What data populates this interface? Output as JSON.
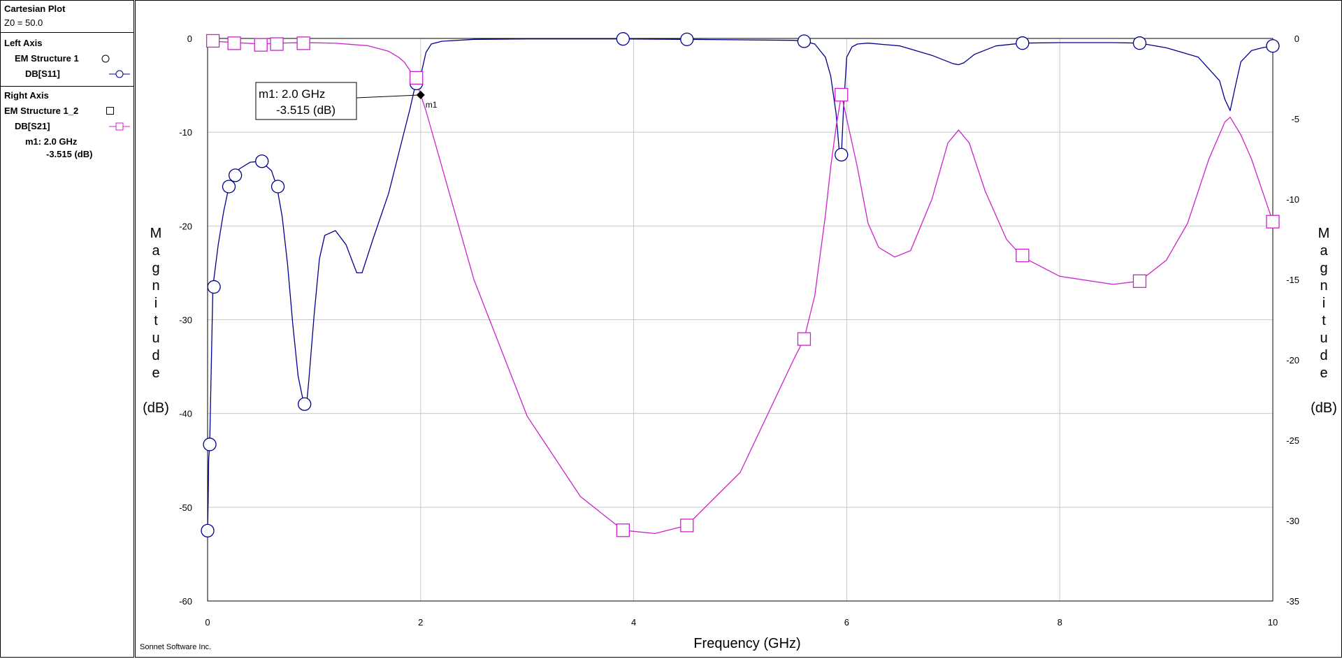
{
  "legend": {
    "title": "Cartesian Plot",
    "z0": "Z0 = 50.0",
    "left_axis_title": "Left Axis",
    "left_structure": "EM Structure 1",
    "left_trace": "DB[S11]",
    "right_axis_title": "Right Axis",
    "right_structure": "EM Structure 1_2",
    "right_trace": "DB[S21]",
    "marker_line1": "m1: 2.0 GHz",
    "marker_line2": "-3.515  (dB)"
  },
  "footer": "Sonnet Software Inc.",
  "colors": {
    "s11": "#00008b",
    "s21": "#cc22cc",
    "grid": "#c8c8c8",
    "marker": "#000000"
  },
  "chart_data": {
    "type": "line",
    "xlabel": "Frequency (GHz)",
    "ylabel_left": [
      "M",
      "a",
      "g",
      "n",
      "i",
      "t",
      "u",
      "d",
      "e",
      "(dB)"
    ],
    "ylabel_right": [
      "M",
      "a",
      "g",
      "n",
      "i",
      "t",
      "u",
      "d",
      "e",
      "(dB)"
    ],
    "xlim": [
      0,
      10
    ],
    "ylim_left": [
      -60,
      0
    ],
    "ylim_right": [
      -35,
      0
    ],
    "x_ticks": [
      "0",
      "2",
      "4",
      "6",
      "8",
      "10"
    ],
    "y_ticks_left": [
      "0",
      "-10",
      "-20",
      "-30",
      "-40",
      "-50",
      "-60"
    ],
    "y_ticks_right": [
      "0",
      "-5",
      "-10",
      "-15",
      "-20",
      "-25",
      "-30",
      "-35"
    ],
    "grid": true,
    "series": [
      {
        "name": "DB[S11]",
        "axis": "left",
        "symbol": "circle",
        "x": [
          0.0,
          0.005,
          0.01,
          0.02,
          0.05,
          0.1,
          0.15,
          0.2,
          0.25,
          0.3,
          0.4,
          0.5,
          0.6,
          0.65,
          0.7,
          0.75,
          0.8,
          0.85,
          0.9,
          0.93,
          0.95,
          1.0,
          1.05,
          1.1,
          1.2,
          1.3,
          1.4,
          1.45,
          1.55,
          1.7,
          1.8,
          1.9,
          1.95,
          2.0,
          2.05,
          2.1,
          2.2,
          2.5,
          3.0,
          3.5,
          3.9,
          4.5,
          5.0,
          5.5,
          5.6,
          5.7,
          5.8,
          5.85,
          5.9,
          5.93,
          5.95,
          5.97,
          6.0,
          6.05,
          6.1,
          6.2,
          6.5,
          6.8,
          7.0,
          7.05,
          7.1,
          7.2,
          7.4,
          7.65,
          8.0,
          8.5,
          8.75,
          9.0,
          9.3,
          9.5,
          9.55,
          9.6,
          9.65,
          9.7,
          9.8,
          9.9,
          10.0
        ],
        "y": [
          -52.5,
          -49.5,
          -45.0,
          -43.3,
          -26.5,
          -22.0,
          -18.5,
          -15.8,
          -14.6,
          -13.9,
          -13.2,
          -13.1,
          -14.1,
          -15.8,
          -19.0,
          -24.0,
          -30.5,
          -36.0,
          -38.8,
          -39.0,
          -36.5,
          -29.5,
          -23.5,
          -21.0,
          -20.5,
          -22.0,
          -25.0,
          -25.0,
          -21.5,
          -16.5,
          -12.0,
          -7.5,
          -5.0,
          -4.0,
          -1.5,
          -0.6,
          -0.3,
          -0.1,
          -0.05,
          -0.05,
          -0.05,
          -0.1,
          -0.15,
          -0.2,
          -0.3,
          -0.6,
          -2.0,
          -4.0,
          -8.0,
          -12.0,
          -12.4,
          -7.5,
          -2.0,
          -0.9,
          -0.6,
          -0.5,
          -0.8,
          -1.8,
          -2.7,
          -2.8,
          -2.6,
          -1.7,
          -0.8,
          -0.5,
          -0.45,
          -0.45,
          -0.5,
          -1.0,
          -2.0,
          -4.5,
          -6.5,
          -7.7,
          -5.0,
          -2.5,
          -1.3,
          -1.0,
          -0.8
        ]
      },
      {
        "name": "DB[S21]",
        "axis": "right",
        "symbol": "square",
        "x": [
          0.0,
          0.25,
          0.5,
          0.65,
          0.9,
          1.2,
          1.5,
          1.7,
          1.8,
          1.85,
          1.9,
          1.95,
          2.0,
          2.05,
          2.2,
          2.5,
          3.0,
          3.5,
          3.9,
          4.2,
          4.5,
          5.0,
          5.5,
          5.6,
          5.7,
          5.8,
          5.85,
          5.9,
          5.95,
          6.0,
          6.1,
          6.2,
          6.3,
          6.45,
          6.6,
          6.8,
          6.95,
          7.05,
          7.15,
          7.3,
          7.5,
          7.65,
          8.0,
          8.5,
          8.75,
          9.0,
          9.2,
          9.4,
          9.55,
          9.6,
          9.7,
          9.8,
          10.0
        ],
        "y": [
          -0.15,
          -0.25,
          -0.35,
          -0.3,
          -0.25,
          -0.3,
          -0.45,
          -0.8,
          -1.2,
          -1.5,
          -2.0,
          -2.5,
          -3.5,
          -4.5,
          -8.0,
          -15.0,
          -23.5,
          -28.5,
          -30.6,
          -30.8,
          -30.3,
          -27.0,
          -20.0,
          -18.7,
          -16.0,
          -11.0,
          -8.0,
          -5.5,
          -3.5,
          -5.0,
          -8.0,
          -11.5,
          -13.0,
          -13.6,
          -13.2,
          -10.0,
          -6.5,
          -5.7,
          -6.5,
          -9.5,
          -12.5,
          -13.6,
          -14.8,
          -15.3,
          -15.1,
          -13.8,
          -11.5,
          -7.5,
          -5.2,
          -4.9,
          -6.0,
          -7.5,
          -11.4
        ]
      }
    ],
    "symbol_points": {
      "s11": [
        [
          0.02,
          -43.3
        ],
        [
          0.0,
          -52.5
        ],
        [
          0.06,
          -26.5
        ],
        [
          0.2,
          -15.8
        ],
        [
          0.26,
          -14.6
        ],
        [
          0.51,
          -13.1
        ],
        [
          0.66,
          -15.8
        ],
        [
          0.91,
          -39.0
        ],
        [
          1.96,
          -4.8
        ],
        [
          3.9,
          -0.05
        ],
        [
          4.5,
          -0.1
        ],
        [
          5.6,
          -0.3
        ],
        [
          5.95,
          -12.4
        ],
        [
          7.65,
          -0.5
        ],
        [
          8.75,
          -0.5
        ],
        [
          10.0,
          -0.8
        ]
      ],
      "s21": [
        [
          0.05,
          -0.15
        ],
        [
          0.25,
          -0.3
        ],
        [
          0.5,
          -0.4
        ],
        [
          0.65,
          -0.35
        ],
        [
          0.9,
          -0.3
        ],
        [
          1.96,
          -2.45
        ],
        [
          3.9,
          -30.6
        ],
        [
          4.5,
          -30.3
        ],
        [
          5.6,
          -18.7
        ],
        [
          5.95,
          -3.5
        ],
        [
          7.65,
          -13.5
        ],
        [
          8.75,
          -15.1
        ],
        [
          10.0,
          -11.4
        ]
      ]
    },
    "marker": {
      "label": "m1",
      "x": 2.0,
      "y": -3.515,
      "axis": "right",
      "text_line1": "m1: 2.0 GHz",
      "text_line2": "-3.515  (dB)"
    }
  }
}
